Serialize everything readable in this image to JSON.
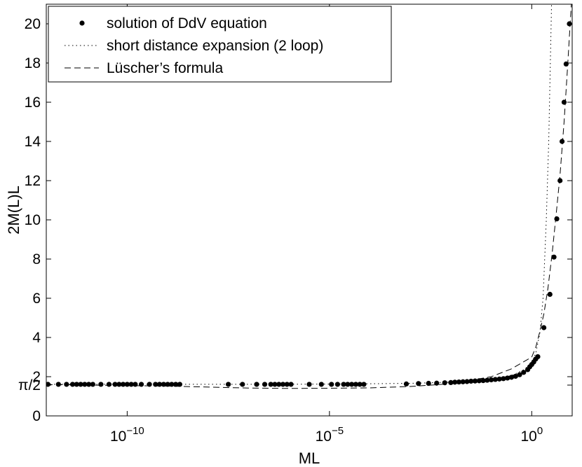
{
  "chart_data": {
    "type": "line",
    "xlabel": "ML",
    "ylabel": "2M(L)L",
    "xscale": "log10",
    "xlim_log10": [
      -12,
      1
    ],
    "ylim": [
      0,
      21
    ],
    "x_ticks": [
      {
        "log10": -10,
        "label": "10",
        "exp": "−10"
      },
      {
        "log10": -5,
        "label": "10",
        "exp": "−5"
      },
      {
        "log10": 0,
        "label": "10",
        "exp": "0"
      }
    ],
    "y_ticks": [
      {
        "value": 0,
        "label": "0"
      },
      {
        "value": 1.5708,
        "label": "π/2"
      },
      {
        "value": 2,
        "label": "2"
      },
      {
        "value": 4,
        "label": "4"
      },
      {
        "value": 6,
        "label": "6"
      },
      {
        "value": 8,
        "label": "8"
      },
      {
        "value": 10,
        "label": "10"
      },
      {
        "value": 12,
        "label": "12"
      },
      {
        "value": 14,
        "label": "14"
      },
      {
        "value": 16,
        "label": "16"
      },
      {
        "value": 18,
        "label": "18"
      },
      {
        "value": 20,
        "label": "20"
      }
    ],
    "legend": {
      "position": "top-left",
      "entries": [
        {
          "label": "solution of DdV equation",
          "style": "dot"
        },
        {
          "label": "short distance expansion (2 loop)",
          "style": "dotted"
        },
        {
          "label": "Lüscher’s formula",
          "style": "dashed"
        }
      ]
    },
    "series": [
      {
        "name": "solution of DdV equation",
        "style": "dot",
        "points": [
          [
            -11.96,
            1.61
          ],
          [
            -11.7,
            1.61
          ],
          [
            -11.5,
            1.61
          ],
          [
            -11.35,
            1.61
          ],
          [
            -11.25,
            1.61
          ],
          [
            -11.15,
            1.61
          ],
          [
            -11.05,
            1.61
          ],
          [
            -10.95,
            1.61
          ],
          [
            -10.85,
            1.61
          ],
          [
            -10.65,
            1.61
          ],
          [
            -10.45,
            1.61
          ],
          [
            -10.3,
            1.61
          ],
          [
            -10.2,
            1.61
          ],
          [
            -10.1,
            1.61
          ],
          [
            -10.0,
            1.61
          ],
          [
            -9.9,
            1.61
          ],
          [
            -9.8,
            1.61
          ],
          [
            -9.65,
            1.61
          ],
          [
            -9.45,
            1.61
          ],
          [
            -9.3,
            1.61
          ],
          [
            -9.2,
            1.61
          ],
          [
            -9.1,
            1.61
          ],
          [
            -9.0,
            1.61
          ],
          [
            -8.9,
            1.61
          ],
          [
            -8.8,
            1.61
          ],
          [
            -8.7,
            1.61
          ],
          [
            -7.5,
            1.61
          ],
          [
            -7.15,
            1.61
          ],
          [
            -6.8,
            1.61
          ],
          [
            -6.6,
            1.61
          ],
          [
            -6.45,
            1.61
          ],
          [
            -6.35,
            1.61
          ],
          [
            -6.25,
            1.61
          ],
          [
            -6.15,
            1.61
          ],
          [
            -6.05,
            1.61
          ],
          [
            -5.95,
            1.61
          ],
          [
            -5.5,
            1.61
          ],
          [
            -5.2,
            1.61
          ],
          [
            -4.95,
            1.61
          ],
          [
            -4.8,
            1.61
          ],
          [
            -4.65,
            1.61
          ],
          [
            -4.55,
            1.61
          ],
          [
            -4.45,
            1.61
          ],
          [
            -4.35,
            1.61
          ],
          [
            -4.25,
            1.61
          ],
          [
            -4.15,
            1.61
          ],
          [
            -3.1,
            1.63
          ],
          [
            -2.8,
            1.65
          ],
          [
            -2.55,
            1.66
          ],
          [
            -2.35,
            1.67
          ],
          [
            -2.15,
            1.69
          ],
          [
            -2.0,
            1.7
          ],
          [
            -1.9,
            1.72
          ],
          [
            -1.8,
            1.73
          ],
          [
            -1.7,
            1.74
          ],
          [
            -1.6,
            1.75
          ],
          [
            -1.5,
            1.77
          ],
          [
            -1.4,
            1.78
          ],
          [
            -1.3,
            1.79
          ],
          [
            -1.2,
            1.8
          ],
          [
            -1.1,
            1.82
          ],
          [
            -1.0,
            1.84
          ],
          [
            -0.9,
            1.86
          ],
          [
            -0.8,
            1.88
          ],
          [
            -0.7,
            1.9
          ],
          [
            -0.6,
            1.93
          ],
          [
            -0.5,
            1.97
          ],
          [
            -0.4,
            2.02
          ],
          [
            -0.3,
            2.1
          ],
          [
            -0.2,
            2.22
          ],
          [
            -0.1,
            2.36
          ],
          [
            -0.05,
            2.5
          ],
          [
            0.0,
            2.62
          ],
          [
            0.05,
            2.75
          ],
          [
            0.1,
            2.9
          ],
          [
            0.15,
            3.02
          ],
          [
            0.3,
            4.5
          ],
          [
            0.45,
            6.2
          ],
          [
            0.55,
            8.1
          ],
          [
            0.62,
            10.05
          ],
          [
            0.7,
            12.0
          ],
          [
            0.75,
            14.0
          ],
          [
            0.8,
            16.0
          ],
          [
            0.85,
            17.95
          ],
          [
            0.93,
            20.0
          ]
        ]
      },
      {
        "name": "short distance expansion (2 loop)",
        "style": "dotted",
        "points": [
          [
            -12,
            1.61
          ],
          [
            -8,
            1.61
          ],
          [
            -5,
            1.62
          ],
          [
            -3,
            1.66
          ],
          [
            -2,
            1.72
          ],
          [
            -1,
            1.85
          ],
          [
            -0.5,
            2.05
          ],
          [
            -0.2,
            2.35
          ],
          [
            0.0,
            2.7
          ],
          [
            0.1,
            3.2
          ],
          [
            0.2,
            4.2
          ],
          [
            0.28,
            6.0
          ],
          [
            0.32,
            8.0
          ],
          [
            0.36,
            10.0
          ],
          [
            0.39,
            12.0
          ],
          [
            0.42,
            14.0
          ],
          [
            0.44,
            16.0
          ],
          [
            0.46,
            18.0
          ],
          [
            0.48,
            20.0
          ],
          [
            0.49,
            21.0
          ]
        ]
      },
      {
        "name": "Lüscher’s formula",
        "style": "dashed",
        "points": [
          [
            -12,
            1.6
          ],
          [
            -9,
            1.52
          ],
          [
            -7,
            1.42
          ],
          [
            -6,
            1.4
          ],
          [
            -5,
            1.41
          ],
          [
            -4,
            1.43
          ],
          [
            -3,
            1.5
          ],
          [
            -2,
            1.64
          ],
          [
            -1,
            2.0
          ],
          [
            -0.5,
            2.4
          ],
          [
            0.0,
            3.0
          ],
          [
            0.1,
            3.5
          ],
          [
            0.2,
            4.3
          ],
          [
            0.3,
            5.2
          ],
          [
            0.4,
            6.5
          ],
          [
            0.5,
            8.2
          ],
          [
            0.6,
            10.2
          ],
          [
            0.7,
            12.3
          ],
          [
            0.8,
            15.0
          ],
          [
            0.88,
            17.6
          ],
          [
            0.95,
            20.0
          ],
          [
            0.98,
            21.0
          ]
        ]
      }
    ]
  }
}
